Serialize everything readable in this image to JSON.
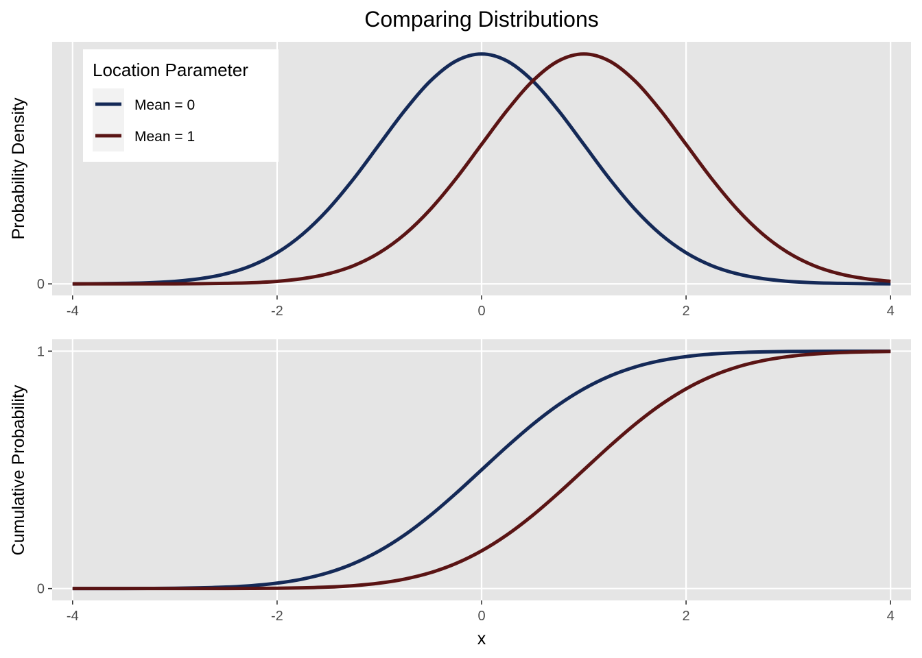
{
  "title": "Comparing Distributions",
  "colors": {
    "mean0": "#142957",
    "mean1": "#5a1414",
    "panel_bg": "#e5e5e5",
    "grid": "#ffffff",
    "tick_text": "#4d4d4d",
    "key_bg": "#f2f2f2"
  },
  "legend": {
    "title": "Location Parameter",
    "placement": "top-left",
    "items": [
      {
        "label": "Mean = 0",
        "color": "#142957"
      },
      {
        "label": "Mean = 1",
        "color": "#5a1414"
      }
    ]
  },
  "chart_data": [
    {
      "type": "line",
      "title": "Comparing Distributions",
      "xlabel": "",
      "ylabel": "Probability Density",
      "xlim": [
        -4.2,
        4.2
      ],
      "ylim": [
        -0.02,
        0.42
      ],
      "x_ticks": [
        -4,
        -2,
        0,
        2,
        4
      ],
      "y_ticks": [
        0
      ],
      "grid": true,
      "series": [
        {
          "name": "Mean = 0",
          "color": "#142957",
          "x": [
            -4,
            -3.75,
            -3.5,
            -3.25,
            -3,
            -2.75,
            -2.5,
            -2.25,
            -2,
            -1.75,
            -1.5,
            -1.25,
            -1,
            -0.75,
            -0.5,
            -0.25,
            0,
            0.25,
            0.5,
            0.75,
            1,
            1.25,
            1.5,
            1.75,
            2,
            2.25,
            2.5,
            2.75,
            3,
            3.25,
            3.5,
            3.75,
            4
          ],
          "y": [
            0.0001,
            0.0004,
            0.0009,
            0.002,
            0.0044,
            0.0091,
            0.0175,
            0.0317,
            0.054,
            0.0863,
            0.1295,
            0.1826,
            0.242,
            0.3011,
            0.3521,
            0.3867,
            0.3989,
            0.3867,
            0.3521,
            0.3011,
            0.242,
            0.1826,
            0.1295,
            0.0863,
            0.054,
            0.0317,
            0.0175,
            0.0091,
            0.0044,
            0.002,
            0.0009,
            0.0004,
            0.0001
          ]
        },
        {
          "name": "Mean = 1",
          "color": "#5a1414",
          "x": [
            -4,
            -3.75,
            -3.5,
            -3.25,
            -3,
            -2.75,
            -2.5,
            -2.25,
            -2,
            -1.75,
            -1.5,
            -1.25,
            -1,
            -0.75,
            -0.5,
            -0.25,
            0,
            0.25,
            0.5,
            0.75,
            1,
            1.25,
            1.5,
            1.75,
            2,
            2.25,
            2.5,
            2.75,
            3,
            3.25,
            3.5,
            3.75,
            4
          ],
          "y": [
            0,
            0,
            0,
            0,
            0.0001,
            0.0004,
            0.0009,
            0.002,
            0.0044,
            0.0091,
            0.0175,
            0.0317,
            0.054,
            0.0863,
            0.1295,
            0.1826,
            0.242,
            0.3011,
            0.3521,
            0.3867,
            0.3989,
            0.3867,
            0.3521,
            0.3011,
            0.242,
            0.1826,
            0.1295,
            0.0863,
            0.054,
            0.0317,
            0.0175,
            0.0091,
            0.0044
          ]
        }
      ]
    },
    {
      "type": "line",
      "title": "",
      "xlabel": "x",
      "ylabel": "Cumulative Probability",
      "xlim": [
        -4.2,
        4.2
      ],
      "ylim": [
        -0.05,
        1.05
      ],
      "x_ticks": [
        -4,
        -2,
        0,
        2,
        4
      ],
      "y_ticks": [
        0,
        1
      ],
      "grid": true,
      "series": [
        {
          "name": "Mean = 0",
          "color": "#142957",
          "x": [
            -4,
            -3.75,
            -3.5,
            -3.25,
            -3,
            -2.75,
            -2.5,
            -2.25,
            -2,
            -1.75,
            -1.5,
            -1.25,
            -1,
            -0.75,
            -0.5,
            -0.25,
            0,
            0.25,
            0.5,
            0.75,
            1,
            1.25,
            1.5,
            1.75,
            2,
            2.25,
            2.5,
            2.75,
            3,
            3.25,
            3.5,
            3.75,
            4
          ],
          "y": [
            0,
            0.0001,
            0.0002,
            0.0006,
            0.0013,
            0.003,
            0.0062,
            0.0122,
            0.0228,
            0.0401,
            0.0668,
            0.1056,
            0.1587,
            0.2266,
            0.3085,
            0.4013,
            0.5,
            0.5987,
            0.6915,
            0.7734,
            0.8413,
            0.8944,
            0.9332,
            0.9599,
            0.9772,
            0.9878,
            0.9938,
            0.997,
            0.9987,
            0.9994,
            0.9998,
            0.9999,
            1
          ]
        },
        {
          "name": "Mean = 1",
          "color": "#5a1414",
          "x": [
            -4,
            -3.75,
            -3.5,
            -3.25,
            -3,
            -2.75,
            -2.5,
            -2.25,
            -2,
            -1.75,
            -1.5,
            -1.25,
            -1,
            -0.75,
            -0.5,
            -0.25,
            0,
            0.25,
            0.5,
            0.75,
            1,
            1.25,
            1.5,
            1.75,
            2,
            2.25,
            2.5,
            2.75,
            3,
            3.25,
            3.5,
            3.75,
            4
          ],
          "y": [
            0,
            0,
            0,
            0,
            0,
            0.0001,
            0.0002,
            0.0006,
            0.0013,
            0.003,
            0.0062,
            0.0122,
            0.0228,
            0.0401,
            0.0668,
            0.1056,
            0.1587,
            0.2266,
            0.3085,
            0.4013,
            0.5,
            0.5987,
            0.6915,
            0.7734,
            0.8413,
            0.8944,
            0.9332,
            0.9599,
            0.9772,
            0.9878,
            0.9938,
            0.997,
            0.9987
          ]
        }
      ]
    }
  ]
}
